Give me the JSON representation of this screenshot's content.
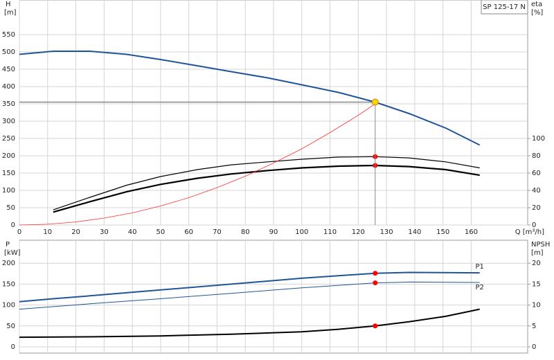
{
  "chart_data": [
    {
      "type": "line",
      "title": "SP 125-17 N",
      "y_label": "H",
      "y_unit": "[m]",
      "y2_label": "eta",
      "y2_unit": "[%]",
      "x_label": "Q [m³/h]",
      "xlim": [
        0,
        180
      ],
      "xticks": [
        0,
        10,
        20,
        30,
        40,
        50,
        60,
        70,
        80,
        90,
        100,
        110,
        120,
        130,
        140,
        150,
        160
      ],
      "ylim": [
        0,
        650
      ],
      "yticks": [
        0,
        50,
        100,
        150,
        200,
        250,
        300,
        350,
        400,
        450,
        500,
        550
      ],
      "y2lim": [
        0,
        260
      ],
      "y2ticks": [
        0,
        20,
        40,
        60,
        80,
        100
      ],
      "grid": true,
      "series": [
        {
          "color": "#1f5597",
          "width": 2,
          "x": [
            0,
            12,
            25,
            38,
            50,
            63,
            75,
            88,
            100,
            113,
            126,
            138,
            151,
            163
          ],
          "values": [
            493,
            502,
            502,
            493,
            478,
            460,
            443,
            425,
            405,
            383,
            355,
            322,
            280,
            231
          ]
        },
        {
          "color": "#000000",
          "width": 1.2,
          "axis": "y2",
          "x": [
            12,
            25,
            38,
            50,
            63,
            75,
            88,
            100,
            113,
            126,
            138,
            151,
            163
          ],
          "values": [
            17.5,
            32,
            46,
            56,
            64,
            69.5,
            73,
            76,
            78.5,
            79,
            77.5,
            73,
            66
          ]
        },
        {
          "color": "#000000",
          "width": 2.2,
          "axis": "y2",
          "x": [
            12,
            25,
            38,
            50,
            63,
            75,
            88,
            100,
            113,
            126,
            138,
            151,
            163
          ],
          "values": [
            15,
            27,
            38.5,
            47,
            54,
            59,
            63,
            66,
            68,
            68.8,
            67.5,
            64,
            57.5
          ]
        },
        {
          "color": "#ff3030",
          "width": 0.8,
          "x": [
            0,
            10,
            20,
            30,
            40,
            50,
            60,
            70,
            80,
            90,
            100,
            110,
            120,
            126
          ],
          "values": [
            0,
            2.2,
            8.8,
            20,
            35,
            55,
            79,
            108,
            141,
            179,
            220,
            267,
            317,
            350
          ]
        },
        {
          "style": "point",
          "color": "#ff0000",
          "axis": "y2",
          "x": [
            126
          ],
          "values": [
            79
          ]
        },
        {
          "style": "point",
          "color": "#ff0000",
          "axis": "y2",
          "x": [
            126
          ],
          "values": [
            68.8
          ]
        },
        {
          "style": "duty",
          "color": "#ffd700",
          "x": [
            126
          ],
          "values": [
            355
          ]
        }
      ]
    },
    {
      "type": "line",
      "y_label": "P",
      "y_unit": "[kW]",
      "y2_label": "NPSH",
      "y2_unit": "[m]",
      "xlim": [
        0,
        180
      ],
      "xticks": [
        0,
        10,
        20,
        30,
        40,
        50,
        60,
        70,
        80,
        90,
        100,
        110,
        120,
        130,
        140,
        150,
        160
      ],
      "ylim": [
        -15,
        255
      ],
      "yticks": [
        0,
        50,
        100,
        150,
        200
      ],
      "y2lim": [
        -1.5,
        25.5
      ],
      "y2ticks": [
        0,
        5,
        10,
        15,
        20
      ],
      "grid": true,
      "series": [
        {
          "name": "P1",
          "color": "#1f5597",
          "width": 2,
          "x": [
            0,
            12,
            25,
            50,
            75,
            100,
            126,
            138,
            163
          ],
          "values": [
            108,
            115,
            122,
            136,
            150,
            164,
            176,
            178,
            177
          ]
        },
        {
          "name": "P2",
          "color": "#1f5597",
          "width": 1,
          "x": [
            0,
            25,
            50,
            75,
            100,
            126,
            138,
            163
          ],
          "values": [
            90,
            103,
            115,
            128,
            141,
            153,
            155,
            154
          ]
        },
        {
          "color": "#000000",
          "width": 2,
          "axis": "y2",
          "x": [
            0,
            25,
            50,
            75,
            100,
            113,
            126,
            138,
            151,
            163
          ],
          "values": [
            2.3,
            2.4,
            2.6,
            3,
            3.6,
            4.2,
            5,
            6,
            7.3,
            9
          ]
        },
        {
          "style": "point",
          "color": "#ff0000",
          "x": [
            126
          ],
          "values": [
            176
          ]
        },
        {
          "style": "point",
          "color": "#ff0000",
          "x": [
            126
          ],
          "values": [
            153
          ]
        },
        {
          "style": "point",
          "color": "#ff0000",
          "axis": "y2",
          "x": [
            126
          ],
          "values": [
            5
          ]
        }
      ]
    }
  ]
}
